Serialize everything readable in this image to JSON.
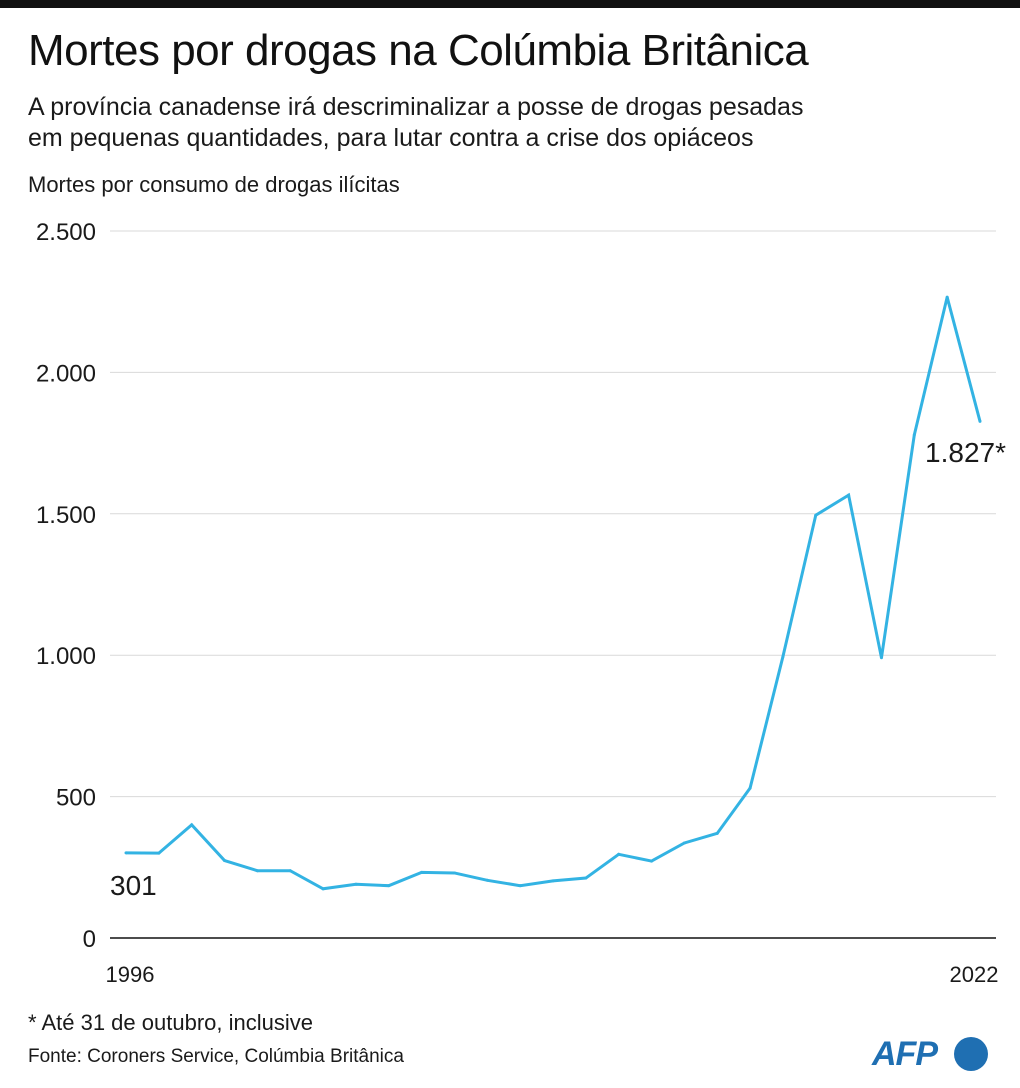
{
  "header": {
    "title": "Mortes por drogas na Colúmbia Britânica",
    "subtitle_line1": "A província canadense irá descriminalizar a posse de drogas pesadas",
    "subtitle_line2": "em pequenas quantidades, para lutar contra a crise dos opiáceos"
  },
  "footer": {
    "footnote": "* Até 31 de outubro, inclusive",
    "source": "Fonte: Coroners Service, Colúmbia Britânica",
    "logo_text": "AFP"
  },
  "colors": {
    "line": "#33b3e3",
    "grid": "#d9d9d9",
    "axis": "#111111",
    "logo": "#1f6fb2"
  },
  "chart_data": {
    "type": "line",
    "ylabel": "Mortes por consumo de drogas ilícitas",
    "xlabel": "",
    "ylim": [
      0,
      2500
    ],
    "yticks": [
      0,
      500,
      1000,
      1500,
      2000,
      2500
    ],
    "ytick_labels": [
      "0",
      "500",
      "1.000",
      "1.500",
      "2.000",
      "2.500"
    ],
    "xtick_labels": [
      "1996",
      "2022"
    ],
    "grid": true,
    "x": [
      1996,
      1997,
      1998,
      1999,
      2000,
      2001,
      2002,
      2003,
      2004,
      2005,
      2006,
      2007,
      2008,
      2009,
      2010,
      2011,
      2012,
      2013,
      2014,
      2015,
      2016,
      2017,
      2018,
      2019,
      2020,
      2021,
      2022
    ],
    "series": [
      {
        "values": [
          301,
          300,
          400,
          274,
          238,
          238,
          174,
          190,
          185,
          232,
          230,
          204,
          185,
          202,
          212,
          296,
          272,
          336,
          370,
          530,
          995,
          1495,
          1566,
          991,
          1779,
          2266,
          1827
        ]
      }
    ],
    "annotations": [
      {
        "text": "301",
        "x": 1996,
        "y": 301
      },
      {
        "text": "1.827*",
        "x": 2022,
        "y": 1827
      }
    ]
  }
}
